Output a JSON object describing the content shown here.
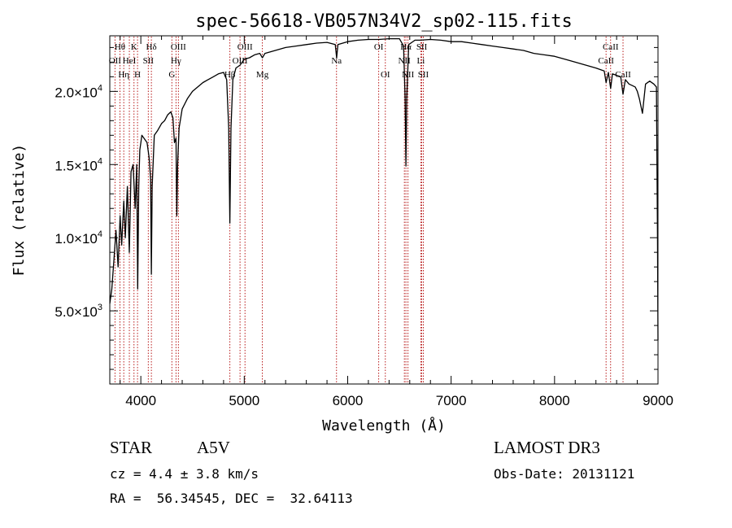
{
  "chart_data": {
    "type": "line",
    "title": "spec-56618-VB057N34V2_sp02-115.fits",
    "xlabel": "Wavelength (Å)",
    "ylabel": "Flux (relative)",
    "xlim": [
      3700,
      9000
    ],
    "ylim": [
      0,
      23800
    ],
    "grid": false,
    "x_ticks": [
      4000,
      5000,
      6000,
      7000,
      8000,
      9000
    ],
    "x_tick_labels": [
      "4000",
      "5000",
      "6000",
      "7000",
      "8000",
      "9000"
    ],
    "y_ticks": [
      5000,
      10000,
      15000,
      20000
    ],
    "y_tick_labels": [
      {
        "mant": "5.0×10",
        "exp": "3"
      },
      {
        "mant": "1.0×10",
        "exp": "4"
      },
      {
        "mant": "1.5×10",
        "exp": "4"
      },
      {
        "mant": "2.0×10",
        "exp": "4"
      }
    ],
    "series": [
      {
        "color": "#000000",
        "points": [
          [
            3700,
            5500
          ],
          [
            3720,
            6500
          ],
          [
            3740,
            8500
          ],
          [
            3760,
            10500
          ],
          [
            3780,
            8000
          ],
          [
            3800,
            11500
          ],
          [
            3815,
            9500
          ],
          [
            3835,
            12500
          ],
          [
            3850,
            10000
          ],
          [
            3870,
            13500
          ],
          [
            3889,
            9000
          ],
          [
            3905,
            14500
          ],
          [
            3925,
            15000
          ],
          [
            3945,
            12000
          ],
          [
            3960,
            15000
          ],
          [
            3970,
            6500
          ],
          [
            3980,
            13500
          ],
          [
            3990,
            16000
          ],
          [
            4000,
            16500
          ],
          [
            4010,
            17000
          ],
          [
            4030,
            16800
          ],
          [
            4060,
            16500
          ],
          [
            4080,
            15500
          ],
          [
            4095,
            14000
          ],
          [
            4102,
            7500
          ],
          [
            4110,
            13500
          ],
          [
            4130,
            17000
          ],
          [
            4160,
            17300
          ],
          [
            4200,
            17800
          ],
          [
            4230,
            18000
          ],
          [
            4260,
            18400
          ],
          [
            4290,
            18600
          ],
          [
            4310,
            18200
          ],
          [
            4325,
            16500
          ],
          [
            4340,
            16800
          ],
          [
            4348,
            11500
          ],
          [
            4356,
            15000
          ],
          [
            4370,
            17500
          ],
          [
            4400,
            18800
          ],
          [
            4450,
            19500
          ],
          [
            4500,
            20000
          ],
          [
            4550,
            20300
          ],
          [
            4600,
            20600
          ],
          [
            4650,
            20800
          ],
          [
            4700,
            21000
          ],
          [
            4750,
            21200
          ],
          [
            4800,
            21300
          ],
          [
            4830,
            20800
          ],
          [
            4850,
            17500
          ],
          [
            4861,
            11000
          ],
          [
            4872,
            17500
          ],
          [
            4890,
            20800
          ],
          [
            4920,
            21600
          ],
          [
            4960,
            21800
          ],
          [
            5000,
            22200
          ],
          [
            5050,
            22300
          ],
          [
            5100,
            22500
          ],
          [
            5150,
            22600
          ],
          [
            5175,
            22300
          ],
          [
            5200,
            22600
          ],
          [
            5300,
            22800
          ],
          [
            5400,
            23000
          ],
          [
            5500,
            23100
          ],
          [
            5600,
            23200
          ],
          [
            5700,
            23300
          ],
          [
            5800,
            23350
          ],
          [
            5880,
            23200
          ],
          [
            5893,
            22300
          ],
          [
            5906,
            23200
          ],
          [
            6000,
            23400
          ],
          [
            6100,
            23500
          ],
          [
            6200,
            23550
          ],
          [
            6300,
            23550
          ],
          [
            6400,
            23600
          ],
          [
            6500,
            23600
          ],
          [
            6540,
            23100
          ],
          [
            6555,
            19500
          ],
          [
            6563,
            14900
          ],
          [
            6571,
            19500
          ],
          [
            6590,
            23200
          ],
          [
            6650,
            23500
          ],
          [
            6700,
            23500
          ],
          [
            6800,
            23550
          ],
          [
            6900,
            23500
          ],
          [
            7000,
            23400
          ],
          [
            7100,
            23400
          ],
          [
            7200,
            23300
          ],
          [
            7300,
            23200
          ],
          [
            7400,
            23100
          ],
          [
            7500,
            23000
          ],
          [
            7600,
            22900
          ],
          [
            7700,
            22800
          ],
          [
            7800,
            22600
          ],
          [
            7900,
            22500
          ],
          [
            8000,
            22400
          ],
          [
            8100,
            22200
          ],
          [
            8200,
            22000
          ],
          [
            8300,
            21800
          ],
          [
            8400,
            21600
          ],
          [
            8480,
            21400
          ],
          [
            8498,
            20600
          ],
          [
            8520,
            21300
          ],
          [
            8542,
            20200
          ],
          [
            8560,
            21200
          ],
          [
            8600,
            21100
          ],
          [
            8640,
            21000
          ],
          [
            8662,
            19800
          ],
          [
            8685,
            20800
          ],
          [
            8720,
            20500
          ],
          [
            8750,
            20400
          ],
          [
            8780,
            20300
          ],
          [
            8800,
            20000
          ],
          [
            8820,
            19500
          ],
          [
            8850,
            18500
          ],
          [
            8880,
            20500
          ],
          [
            8920,
            20700
          ],
          [
            8960,
            20500
          ],
          [
            8985,
            20300
          ],
          [
            8995,
            10000
          ],
          [
            9000,
            3000
          ]
        ]
      }
    ],
    "line_markers": [
      {
        "wl": 3750,
        "label": "OII",
        "row": 1
      },
      {
        "wl": 3798,
        "label": "Hθ",
        "row": 0
      },
      {
        "wl": 3835,
        "label": "Hη",
        "row": 2
      },
      {
        "wl": 3889,
        "label": "HeI",
        "row": 1
      },
      {
        "wl": 3934,
        "label": "K",
        "row": 0
      },
      {
        "wl": 3968,
        "label": "H",
        "row": 2
      },
      {
        "wl": 4072,
        "label": "SII",
        "row": 1
      },
      {
        "wl": 4102,
        "label": "Hδ",
        "row": 0
      },
      {
        "wl": 4300,
        "label": "G",
        "row": 2
      },
      {
        "wl": 4340,
        "label": "Hγ",
        "row": 1
      },
      {
        "wl": 4363,
        "label": "OIII",
        "row": 0
      },
      {
        "wl": 4861,
        "label": "Hβ",
        "row": 2
      },
      {
        "wl": 4959,
        "label": "OIII",
        "row": 1
      },
      {
        "wl": 5007,
        "label": "OIII",
        "row": 0
      },
      {
        "wl": 5175,
        "label": "Mg",
        "row": 2
      },
      {
        "wl": 5892,
        "label": "Na",
        "row": 1
      },
      {
        "wl": 6300,
        "label": "OI",
        "row": 0
      },
      {
        "wl": 6364,
        "label": "OI",
        "row": 2
      },
      {
        "wl": 6548,
        "label": "NII",
        "row": 1
      },
      {
        "wl": 6563,
        "label": "Hα",
        "row": 0
      },
      {
        "wl": 6583,
        "label": "NII",
        "row": 2
      },
      {
        "wl": 6707,
        "label": "Li",
        "row": 1
      },
      {
        "wl": 6716,
        "label": "SII",
        "row": 0
      },
      {
        "wl": 6731,
        "label": "SII",
        "row": 2
      },
      {
        "wl": 8498,
        "label": "CaII",
        "row": 1
      },
      {
        "wl": 8542,
        "label": "CaII",
        "row": 0
      },
      {
        "wl": 8662,
        "label": "CaII",
        "row": 2
      }
    ]
  },
  "footer": {
    "object_class": "STAR",
    "subclass": "A5V",
    "survey": "LAMOST DR3",
    "cz": "cz = 4.4 ± 3.8 km/s",
    "obs_date": "Obs-Date: 20131121",
    "coords": "RA =  56.34545, DEC =  32.64113"
  },
  "colors": {
    "spectrum": "#000000",
    "line_marker": "#b00000",
    "axes": "#000000"
  }
}
